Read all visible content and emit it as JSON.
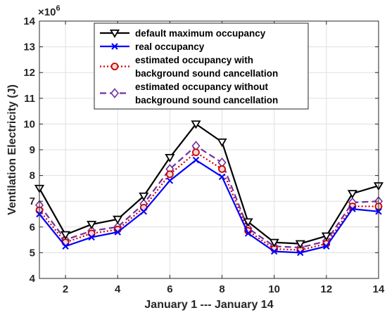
{
  "chart_data": {
    "type": "line",
    "xlabel": "January 1 --- January 14",
    "ylabel": "Ventilation Electricity (J)",
    "scale_base": "×10",
    "scale_exponent": "6",
    "xlim": [
      1,
      14
    ],
    "ylim": [
      4,
      14
    ],
    "xticks": [
      2,
      4,
      6,
      8,
      10,
      12,
      14
    ],
    "yticks": [
      4,
      5,
      6,
      7,
      8,
      9,
      10,
      11,
      12,
      13,
      14
    ],
    "grid": true,
    "legend_position": "top-center",
    "x": [
      1,
      2,
      3,
      4,
      5,
      6,
      7,
      8,
      9,
      10,
      11,
      12,
      13,
      14
    ],
    "series": [
      {
        "name": "default maximum occupancy",
        "values": [
          7.5,
          5.7,
          6.1,
          6.3,
          7.2,
          8.7,
          10.0,
          9.3,
          6.2,
          5.4,
          5.35,
          5.65,
          7.3,
          7.6
        ],
        "color": "#000000",
        "style": "solid",
        "marker": "triangle-down"
      },
      {
        "name": "real occupancy",
        "values": [
          6.5,
          5.25,
          5.6,
          5.8,
          6.6,
          7.8,
          8.6,
          7.95,
          5.75,
          5.05,
          5.0,
          5.25,
          6.7,
          6.6
        ],
        "color": "#0000ff",
        "style": "solid",
        "marker": "x"
      },
      {
        "name": "estimated occupancy with background sound cancellation",
        "legend_lines": [
          "estimated occupancy with",
          "background sound cancellation"
        ],
        "values": [
          6.65,
          5.4,
          5.75,
          5.9,
          6.75,
          8.05,
          8.9,
          8.25,
          5.85,
          5.15,
          5.1,
          5.35,
          6.8,
          6.8
        ],
        "color": "#cc0000",
        "style": "dotted",
        "marker": "circle"
      },
      {
        "name": "estimated occupancy without background sound cancellation",
        "legend_lines": [
          "estimated occupancy without",
          "background sound cancellation"
        ],
        "values": [
          6.85,
          5.5,
          5.85,
          6.0,
          6.9,
          8.25,
          9.15,
          8.5,
          5.95,
          5.25,
          5.2,
          5.45,
          6.95,
          7.0
        ],
        "color": "#7030a0",
        "style": "dashed",
        "marker": "diamond"
      }
    ]
  }
}
